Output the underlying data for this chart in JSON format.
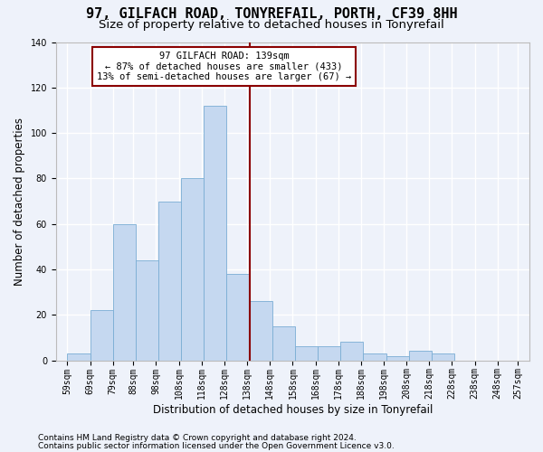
{
  "title": "97, GILFACH ROAD, TONYREFAIL, PORTH, CF39 8HH",
  "subtitle": "Size of property relative to detached houses in Tonyrefail",
  "xlabel": "Distribution of detached houses by size in Tonyrefail",
  "ylabel": "Number of detached properties",
  "bar_values": [
    3,
    22,
    60,
    44,
    70,
    80,
    112,
    38,
    26,
    15,
    6,
    6,
    8,
    3,
    2,
    4,
    3,
    0,
    0
  ],
  "bin_left": [
    59,
    69,
    79,
    89,
    99,
    109,
    119,
    129,
    139,
    149,
    159,
    169,
    179,
    189,
    199,
    209,
    219,
    229,
    239
  ],
  "bin_width": 10,
  "tick_labels": [
    "59sqm",
    "69sqm",
    "79sqm",
    "88sqm",
    "98sqm",
    "108sqm",
    "118sqm",
    "128sqm",
    "138sqm",
    "148sqm",
    "158sqm",
    "168sqm",
    "178sqm",
    "188sqm",
    "198sqm",
    "208sqm",
    "218sqm",
    "228sqm",
    "238sqm",
    "248sqm",
    "257sqm"
  ],
  "tick_positions": [
    59,
    69,
    79,
    88,
    98,
    108,
    118,
    128,
    138,
    148,
    158,
    168,
    178,
    188,
    198,
    208,
    218,
    228,
    238,
    248,
    257
  ],
  "bar_color": "#c5d8f0",
  "bar_edge_color": "#7aadd4",
  "vline_x": 139,
  "vline_color": "#8b0000",
  "annotation_text": "97 GILFACH ROAD: 139sqm\n← 87% of detached houses are smaller (433)\n13% of semi-detached houses are larger (67) →",
  "annotation_box_color": "#8b0000",
  "ylim": [
    0,
    140
  ],
  "xlim": [
    54,
    262
  ],
  "yticks": [
    0,
    20,
    40,
    60,
    80,
    100,
    120,
    140
  ],
  "footer1": "Contains HM Land Registry data © Crown copyright and database right 2024.",
  "footer2": "Contains public sector information licensed under the Open Government Licence v3.0.",
  "background_color": "#eef2fa",
  "grid_color": "#ffffff",
  "title_fontsize": 11,
  "subtitle_fontsize": 9.5,
  "xlabel_fontsize": 8.5,
  "ylabel_fontsize": 8.5,
  "tick_fontsize": 7,
  "footer_fontsize": 6.5,
  "annotation_fontsize": 7.5
}
